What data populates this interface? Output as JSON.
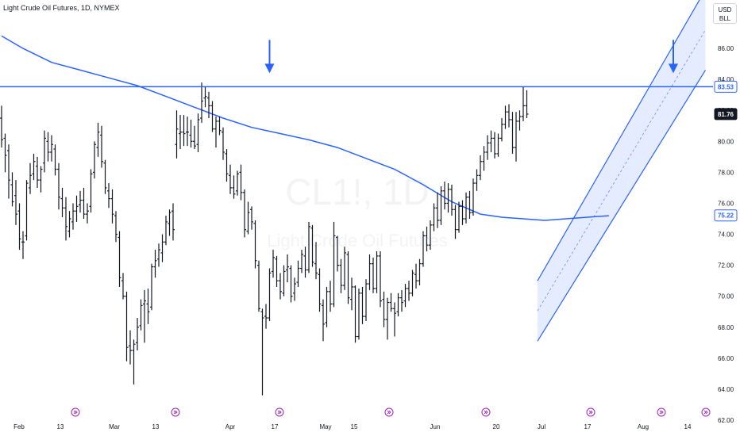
{
  "header": {
    "symbol_title": "Light Crude Oil Futures, 1D, NYMEX"
  },
  "currency": {
    "code": "USD",
    "unit": "BLL"
  },
  "watermark": {
    "ticker": "CL1!, 1D",
    "name": "Light Crude Oil Futures"
  },
  "price_labels": {
    "horizontal_line": "83.53",
    "last_price": "81.76",
    "moving_average": "75.22"
  },
  "colors": {
    "bar": "#131722",
    "line": "#2962ff",
    "ma": "#2962ff",
    "channel_fill": "#dbe4ff",
    "last_price_bg": "#131722",
    "accent": "#2962ff"
  },
  "chart_data": {
    "type": "ohlc",
    "ylim": [
      62,
      88
    ],
    "y_ticks": [
      "62.00",
      "64.00",
      "66.00",
      "68.00",
      "70.00",
      "72.00",
      "74.00",
      "76.00",
      "78.00",
      "80.00",
      "82.00",
      "84.00",
      "86.00"
    ],
    "x_ticks": [
      "Feb",
      "13",
      "Mar",
      "13",
      "Apr",
      "17",
      "May",
      "15",
      "Jun",
      "20",
      "Jul",
      "17",
      "Aug",
      "14"
    ],
    "horizontal_line_value": 83.53,
    "last_price": 81.76,
    "ma_last": 75.22,
    "bars": [
      [
        0,
        81.5,
        82.3,
        79.6,
        80.1
      ],
      [
        1,
        80.2,
        80.5,
        78.0,
        79.1
      ],
      [
        2,
        79.4,
        79.8,
        76.3,
        77.5
      ],
      [
        3,
        77.2,
        78.0,
        75.8,
        76.1
      ],
      [
        4,
        76.5,
        77.5,
        74.6,
        75.3
      ],
      [
        5,
        75.5,
        76.0,
        73.0,
        73.7
      ],
      [
        6,
        73.5,
        74.2,
        72.4,
        73.5
      ],
      [
        7,
        73.9,
        77.5,
        73.6,
        77.3
      ],
      [
        8,
        77.0,
        78.6,
        76.6,
        77.8
      ],
      [
        9,
        77.9,
        79.2,
        77.5,
        78.7
      ],
      [
        10,
        78.4,
        79.0,
        77.0,
        77.5
      ],
      [
        11,
        77.5,
        78.4,
        76.7,
        78.2
      ],
      [
        12,
        78.6,
        80.7,
        78.0,
        80.2
      ],
      [
        13,
        80.0,
        80.6,
        78.7,
        79.3
      ],
      [
        14,
        79.3,
        80.4,
        78.7,
        79.8
      ],
      [
        15,
        79.5,
        79.8,
        77.8,
        78.2
      ],
      [
        16,
        78.2,
        78.6,
        75.6,
        76.4
      ],
      [
        17,
        76.3,
        77.0,
        75.1,
        75.7
      ],
      [
        18,
        75.7,
        76.4,
        73.6,
        74.5
      ],
      [
        19,
        74.2,
        75.5,
        73.8,
        75.0
      ],
      [
        20,
        74.8,
        76.0,
        74.3,
        75.5
      ],
      [
        21,
        75.5,
        76.5,
        74.8,
        75.8
      ],
      [
        22,
        75.9,
        76.8,
        75.4,
        76.2
      ],
      [
        23,
        76.2,
        77.0,
        75.0,
        75.3
      ],
      [
        24,
        75.3,
        76.0,
        74.7,
        75.5
      ],
      [
        25,
        75.8,
        78.2,
        75.4,
        77.9
      ],
      [
        26,
        78.0,
        80.0,
        77.6,
        79.8
      ],
      [
        27,
        79.6,
        81.2,
        79.0,
        80.6
      ],
      [
        28,
        80.4,
        81.0,
        78.3,
        78.7
      ],
      [
        29,
        78.6,
        78.8,
        76.6,
        77.0
      ],
      [
        30,
        76.8,
        77.3,
        75.7,
        76.3
      ],
      [
        31,
        76.3,
        76.9,
        74.7,
        75.3
      ],
      [
        32,
        75.2,
        75.5,
        73.5,
        74.0
      ],
      [
        33,
        73.8,
        74.2,
        70.6,
        71.2
      ],
      [
        34,
        71.0,
        71.5,
        69.8,
        70.0
      ],
      [
        35,
        70.0,
        70.3,
        65.8,
        66.7
      ],
      [
        36,
        66.8,
        67.8,
        65.6,
        66.5
      ],
      [
        37,
        66.5,
        67.2,
        64.3,
        66.9
      ],
      [
        38,
        67.0,
        68.6,
        66.5,
        68.0
      ],
      [
        39,
        68.1,
        69.8,
        67.8,
        69.4
      ],
      [
        40,
        69.5,
        70.4,
        67.0,
        69.7
      ],
      [
        41,
        69.5,
        70.5,
        68.2,
        69.0
      ],
      [
        42,
        69.3,
        72.1,
        69.1,
        71.9
      ],
      [
        43,
        71.9,
        73.0,
        71.2,
        72.3
      ],
      [
        44,
        72.4,
        73.4,
        71.9,
        73.0
      ],
      [
        45,
        72.8,
        74.0,
        72.2,
        73.5
      ],
      [
        46,
        73.5,
        75.2,
        73.3,
        74.8
      ],
      [
        47,
        74.7,
        75.6,
        73.9,
        75.4
      ],
      [
        48,
        75.5,
        76.0,
        73.6,
        74.3
      ],
      [
        49,
        79.8,
        82.0,
        78.9,
        80.8
      ],
      [
        50,
        80.5,
        81.7,
        79.5,
        80.6
      ],
      [
        51,
        80.6,
        81.7,
        79.7,
        80.5
      ],
      [
        52,
        80.6,
        81.6,
        79.7,
        80.6
      ],
      [
        53,
        80.4,
        81.4,
        79.6,
        80.0
      ],
      [
        54,
        80.0,
        81.0,
        79.5,
        79.7
      ],
      [
        55,
        79.8,
        81.8,
        79.3,
        81.4
      ],
      [
        56,
        81.5,
        83.8,
        81.2,
        82.6
      ],
      [
        57,
        82.8,
        83.5,
        82.2,
        82.9
      ],
      [
        58,
        82.8,
        83.2,
        81.5,
        82.3
      ],
      [
        59,
        82.3,
        82.6,
        80.6,
        80.8
      ],
      [
        60,
        80.8,
        81.6,
        79.6,
        81.3
      ],
      [
        61,
        81.3,
        81.6,
        80.4,
        80.7
      ],
      [
        62,
        80.6,
        80.9,
        78.8,
        79.3
      ],
      [
        63,
        79.2,
        79.5,
        77.4,
        77.9
      ],
      [
        64,
        77.8,
        78.5,
        76.6,
        77.0
      ],
      [
        65,
        77.0,
        77.8,
        76.3,
        76.6
      ],
      [
        66,
        76.8,
        78.1,
        76.5,
        77.9
      ],
      [
        67,
        78.0,
        78.5,
        76.2,
        76.7
      ],
      [
        68,
        76.7,
        76.9,
        73.8,
        74.3
      ],
      [
        69,
        74.2,
        76.1,
        74.0,
        75.4
      ],
      [
        70,
        75.6,
        75.8,
        74.3,
        74.8
      ],
      [
        71,
        74.7,
        74.9,
        71.8,
        72.3
      ],
      [
        72,
        72.0,
        72.3,
        69.0,
        69.2
      ],
      [
        73,
        69.0,
        69.2,
        63.6,
        68.6
      ],
      [
        74,
        68.7,
        69.5,
        67.9,
        68.6
      ],
      [
        75,
        68.6,
        71.8,
        68.4,
        71.5
      ],
      [
        76,
        71.6,
        73.0,
        71.2,
        72.5
      ],
      [
        77,
        72.4,
        72.6,
        70.6,
        71.0
      ],
      [
        78,
        71.0,
        71.5,
        69.8,
        70.3
      ],
      [
        79,
        70.2,
        72.0,
        70.0,
        71.6
      ],
      [
        80,
        71.7,
        72.7,
        70.9,
        71.9
      ],
      [
        81,
        71.8,
        72.0,
        69.6,
        70.0
      ],
      [
        82,
        70.2,
        71.2,
        69.7,
        70.8
      ],
      [
        83,
        70.9,
        72.3,
        70.6,
        71.8
      ],
      [
        84,
        71.8,
        73.0,
        71.5,
        72.7
      ],
      [
        85,
        72.6,
        73.2,
        71.2,
        71.7
      ],
      [
        86,
        71.7,
        74.8,
        71.5,
        74.5
      ],
      [
        87,
        74.4,
        74.6,
        71.9,
        72.2
      ],
      [
        88,
        72.1,
        73.5,
        71.1,
        71.5
      ],
      [
        89,
        71.4,
        71.8,
        69.0,
        69.5
      ],
      [
        90,
        69.4,
        69.8,
        67.1,
        68.2
      ],
      [
        91,
        68.3,
        70.6,
        68.0,
        70.3
      ],
      [
        92,
        70.3,
        71.0,
        69.0,
        69.5
      ],
      [
        93,
        69.5,
        74.8,
        69.3,
        73.9
      ],
      [
        94,
        73.8,
        73.9,
        71.6,
        72.0
      ],
      [
        95,
        72.0,
        72.4,
        70.2,
        70.7
      ],
      [
        96,
        70.7,
        73.2,
        70.4,
        72.8
      ],
      [
        97,
        72.7,
        72.9,
        69.5,
        69.9
      ],
      [
        98,
        69.8,
        71.2,
        69.1,
        70.6
      ],
      [
        99,
        70.6,
        70.7,
        67.0,
        67.4
      ],
      [
        100,
        67.4,
        70.5,
        67.2,
        70.2
      ],
      [
        101,
        70.2,
        70.6,
        68.2,
        68.7
      ],
      [
        102,
        68.7,
        71.1,
        68.4,
        70.8
      ],
      [
        103,
        70.8,
        72.7,
        70.4,
        72.1
      ],
      [
        104,
        72.1,
        72.5,
        70.2,
        70.5
      ],
      [
        105,
        70.5,
        72.9,
        70.2,
        72.6
      ],
      [
        106,
        72.6,
        72.9,
        69.3,
        69.7
      ],
      [
        107,
        69.8,
        70.3,
        68.0,
        68.5
      ],
      [
        108,
        68.5,
        69.9,
        67.2,
        69.6
      ],
      [
        109,
        69.6,
        70.2,
        69.0,
        69.2
      ],
      [
        110,
        69.2,
        69.6,
        67.4,
        68.9
      ],
      [
        111,
        69.0,
        70.2,
        68.7,
        69.9
      ],
      [
        112,
        69.9,
        70.4,
        69.0,
        69.6
      ],
      [
        113,
        69.7,
        70.8,
        69.3,
        70.5
      ],
      [
        114,
        70.5,
        71.0,
        69.7,
        70.2
      ],
      [
        115,
        70.2,
        71.7,
        70.0,
        71.5
      ],
      [
        116,
        71.4,
        72.1,
        70.5,
        71.0
      ],
      [
        117,
        71.0,
        72.4,
        70.7,
        72.1
      ],
      [
        118,
        72.1,
        74.2,
        71.9,
        73.9
      ],
      [
        119,
        73.9,
        74.5,
        72.9,
        73.3
      ],
      [
        120,
        73.3,
        74.9,
        73.0,
        74.6
      ],
      [
        121,
        74.6,
        76.0,
        74.2,
        75.7
      ],
      [
        122,
        75.7,
        76.7,
        74.4,
        74.9
      ],
      [
        123,
        74.9,
        77.1,
        74.6,
        76.8
      ],
      [
        124,
        76.8,
        77.4,
        75.6,
        76.0
      ],
      [
        125,
        76.0,
        77.3,
        75.4,
        76.9
      ],
      [
        126,
        76.9,
        77.2,
        75.2,
        75.6
      ],
      [
        127,
        75.6,
        75.9,
        73.7,
        74.3
      ],
      [
        128,
        74.3,
        76.1,
        74.1,
        75.8
      ],
      [
        129,
        75.8,
        76.2,
        74.6,
        75.0
      ],
      [
        130,
        75.0,
        76.7,
        74.7,
        76.4
      ],
      [
        131,
        76.4,
        76.8,
        75.0,
        75.4
      ],
      [
        132,
        75.4,
        77.6,
        75.2,
        77.3
      ],
      [
        133,
        77.3,
        78.2,
        76.8,
        77.8
      ],
      [
        134,
        77.8,
        79.1,
        77.5,
        78.7
      ],
      [
        135,
        78.7,
        79.7,
        78.1,
        79.3
      ],
      [
        136,
        79.3,
        80.4,
        78.8,
        79.9
      ],
      [
        137,
        79.9,
        80.7,
        79.3,
        80.2
      ],
      [
        138,
        80.2,
        80.6,
        78.9,
        79.2
      ],
      [
        139,
        79.2,
        80.5,
        79.0,
        80.2
      ],
      [
        140,
        80.2,
        81.5,
        80.0,
        81.1
      ],
      [
        141,
        81.1,
        82.3,
        80.8,
        81.9
      ],
      [
        142,
        81.9,
        82.4,
        80.9,
        81.4
      ],
      [
        143,
        81.4,
        81.9,
        79.2,
        79.6
      ],
      [
        144,
        79.6,
        81.9,
        78.7,
        81.3
      ],
      [
        145,
        81.3,
        82.0,
        80.7,
        81.6
      ],
      [
        146,
        81.6,
        83.5,
        81.3,
        82.3
      ],
      [
        147,
        82.3,
        83.3,
        81.5,
        81.76
      ]
    ],
    "moving_average": [
      [
        0,
        86.8
      ],
      [
        6,
        86.0
      ],
      [
        14,
        85.1
      ],
      [
        22,
        84.6
      ],
      [
        30,
        84.1
      ],
      [
        38,
        83.6
      ],
      [
        46,
        82.9
      ],
      [
        54,
        82.2
      ],
      [
        62,
        81.5
      ],
      [
        70,
        80.9
      ],
      [
        78,
        80.5
      ],
      [
        86,
        80.1
      ],
      [
        94,
        79.6
      ],
      [
        102,
        78.9
      ],
      [
        110,
        78.2
      ],
      [
        118,
        77.2
      ],
      [
        126,
        76.1
      ],
      [
        134,
        75.3
      ],
      [
        140,
        75.1
      ],
      [
        146,
        75.0
      ],
      [
        152,
        74.9
      ],
      [
        158,
        75.0
      ],
      [
        164,
        75.1
      ],
      [
        170,
        75.2
      ]
    ],
    "channel": {
      "lower_start": [
        150,
        67.1
      ],
      "lower_end": [
        197,
        84.6
      ],
      "upper_start": [
        150,
        71.0
      ],
      "upper_end": [
        197,
        89.8
      ]
    },
    "markers": [
      {
        "type": "arrow-down",
        "index": 75,
        "value": 84.4
      },
      {
        "type": "arrow-down",
        "index": 188,
        "value": 84.4
      }
    ]
  }
}
